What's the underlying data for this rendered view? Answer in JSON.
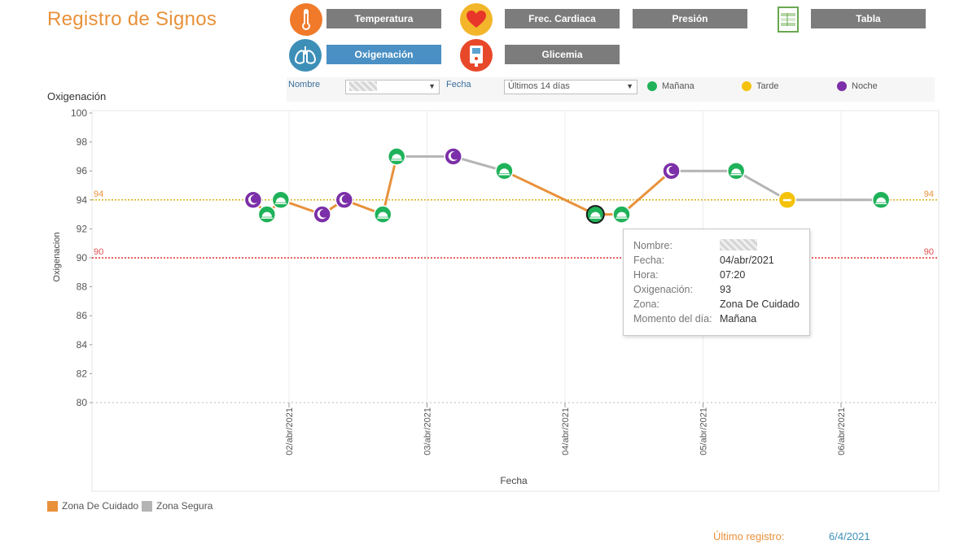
{
  "app": {
    "title": "Registro de Signos"
  },
  "nav": {
    "temperatura": "Temperatura",
    "frec_cardiaca": "Frec. Cardiaca",
    "presion": "Presión",
    "tabla": "Tabla",
    "oxigenacion": "Oxigenación",
    "glicemia": "Glicemia"
  },
  "filters": {
    "nombre_label": "Nombre",
    "fecha_label": "Fecha",
    "fecha_value": "Últimos 14 días",
    "legend": {
      "manana": "Mañana",
      "tarde": "Tarde",
      "noche": "Noche"
    }
  },
  "colors": {
    "accent": "#e8913a",
    "active_button": "#4a90c4",
    "button": "#7c7c7c",
    "manana": "#1fb25a",
    "tarde": "#f5c20a",
    "noche": "#7b2fa8",
    "care_zone": "#e8913a",
    "safe_zone": "#b4b4b4"
  },
  "chart_title": "Oxigenación",
  "chart_data": {
    "type": "line",
    "title": "Oxigenación",
    "xlabel": "Fecha",
    "ylabel": "Oxigenacion",
    "ylim": [
      80,
      100
    ],
    "yticks": [
      "100",
      "98",
      "96",
      "94",
      "92",
      "90",
      "88",
      "86",
      "84",
      "82",
      "80"
    ],
    "xticks": [
      "02/abr/2021",
      "03/abr/2021",
      "04/abr/2021",
      "05/abr/2021",
      "06/abr/2021"
    ],
    "reference_lines": [
      {
        "value": 94,
        "label": "94",
        "color": "#d4b21a"
      },
      {
        "value": 90,
        "label": "90",
        "color": "#e03030"
      }
    ],
    "series_zones": {
      "care": "Zona De Cuidado",
      "safe": "Zona Segura"
    },
    "points": [
      {
        "t": 1.74,
        "y": 94,
        "moment": "noche"
      },
      {
        "t": 1.84,
        "y": 93,
        "moment": "manana"
      },
      {
        "t": 1.94,
        "y": 94,
        "moment": "manana"
      },
      {
        "t": 2.24,
        "y": 93,
        "moment": "noche"
      },
      {
        "t": 2.4,
        "y": 94,
        "moment": "noche"
      },
      {
        "t": 2.68,
        "y": 93,
        "moment": "manana"
      },
      {
        "t": 2.78,
        "y": 97,
        "moment": "manana"
      },
      {
        "t": 3.19,
        "y": 97,
        "moment": "noche"
      },
      {
        "t": 3.56,
        "y": 96,
        "moment": "manana"
      },
      {
        "t": 4.22,
        "y": 93,
        "moment": "manana"
      },
      {
        "t": 4.41,
        "y": 93,
        "moment": "manana"
      },
      {
        "t": 4.77,
        "y": 96,
        "moment": "noche"
      },
      {
        "t": 5.24,
        "y": 96,
        "moment": "manana"
      },
      {
        "t": 5.61,
        "y": 94,
        "moment": "tarde"
      },
      {
        "t": 6.29,
        "y": 94,
        "moment": "manana"
      }
    ],
    "segments": [
      {
        "from": 0,
        "to": 1,
        "zone": "care"
      },
      {
        "from": 1,
        "to": 2,
        "zone": "care"
      },
      {
        "from": 2,
        "to": 3,
        "zone": "care"
      },
      {
        "from": 3,
        "to": 4,
        "zone": "care"
      },
      {
        "from": 4,
        "to": 5,
        "zone": "care"
      },
      {
        "from": 5,
        "to": 6,
        "zone": "care"
      },
      {
        "from": 6,
        "to": 7,
        "zone": "safe"
      },
      {
        "from": 7,
        "to": 8,
        "zone": "safe"
      },
      {
        "from": 8,
        "to": 9,
        "zone": "care"
      },
      {
        "from": 9,
        "to": 10,
        "zone": "care"
      },
      {
        "from": 10,
        "to": 11,
        "zone": "care"
      },
      {
        "from": 11,
        "to": 12,
        "zone": "safe"
      },
      {
        "from": 12,
        "to": 13,
        "zone": "safe"
      },
      {
        "from": 13,
        "to": 14,
        "zone": "safe"
      }
    ],
    "selected_point": 9
  },
  "tooltip": {
    "rows": [
      {
        "k": "Nombre:",
        "v": ""
      },
      {
        "k": "Fecha:",
        "v": "04/abr/2021"
      },
      {
        "k": "Hora:",
        "v": "07:20"
      },
      {
        "k": "Oxigenación:",
        "v": "93"
      },
      {
        "k": "Zona:",
        "v": "Zona De Cuidado"
      },
      {
        "k": "Momento del día:",
        "v": "Mañana"
      }
    ]
  },
  "legend_bottom": {
    "care": "Zona De Cuidado",
    "safe": "Zona Segura"
  },
  "footer": {
    "label": "Último registro:",
    "value": "6/4/2021"
  }
}
